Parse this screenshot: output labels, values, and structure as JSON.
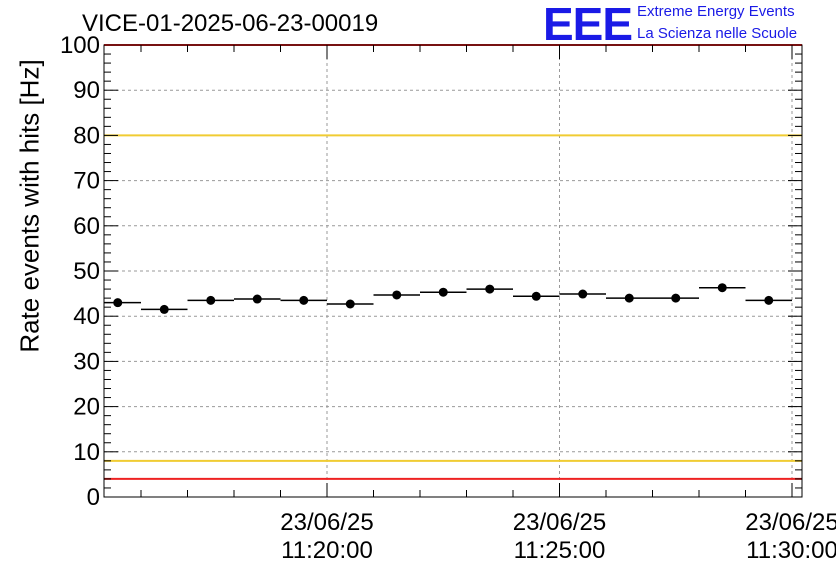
{
  "title": "VICE-01-2025-06-23-00019",
  "logo": {
    "mark": "EEE",
    "line1": "Extreme Energy Events",
    "line2": "La Scienza nelle Scuole",
    "color": "#1a1ae6"
  },
  "chart_data": {
    "type": "scatter",
    "ylabel": "Rate events with hits [Hz]",
    "xlabel": "",
    "ylim": [
      0,
      100
    ],
    "y_ticks": [
      0,
      10,
      20,
      30,
      40,
      50,
      60,
      70,
      80,
      90,
      100
    ],
    "x_ticks": [
      {
        "date": "23/06/25",
        "time": "11:20:00"
      },
      {
        "date": "23/06/25",
        "time": "11:25:00"
      },
      {
        "date": "23/06/25",
        "time": "11:30:00"
      }
    ],
    "grid": true,
    "reference_lines": [
      {
        "y": 100,
        "color": "#ee2222"
      },
      {
        "y": 80,
        "color": "#f0cc33"
      },
      {
        "y": 8,
        "color": "#f0cc33"
      },
      {
        "y": 4,
        "color": "#ee2222"
      }
    ],
    "series": [
      {
        "color": "#000000",
        "x": [
          "11:15:30",
          "11:16:30",
          "11:17:30",
          "11:18:30",
          "11:19:30",
          "11:20:30",
          "11:21:30",
          "11:22:30",
          "11:23:30",
          "11:24:30",
          "11:25:30",
          "11:26:30",
          "11:27:30",
          "11:28:30",
          "11:29:30"
        ],
        "y": [
          43.0,
          41.5,
          43.5,
          43.8,
          43.5,
          42.7,
          44.7,
          45.3,
          46.0,
          44.4,
          44.9,
          44.0,
          44.0,
          46.3,
          43.5
        ]
      }
    ]
  }
}
